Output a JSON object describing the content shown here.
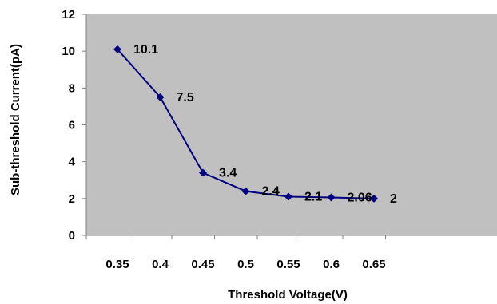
{
  "chart_data": {
    "type": "line",
    "x": [
      0.35,
      0.4,
      0.45,
      0.5,
      0.55,
      0.6,
      0.65
    ],
    "x_tick_labels": [
      "0.35",
      "0.4",
      "0.45",
      "0.5",
      "0.55",
      "0.6",
      "0.65"
    ],
    "series": [
      {
        "values": [
          10.1,
          7.5,
          3.4,
          2.4,
          2.1,
          2.06,
          2.0
        ],
        "data_labels": [
          "10.1",
          "7.5",
          "3.4",
          "2.4",
          "2.1",
          "2.06",
          "2"
        ],
        "color": "#000080",
        "marker": "diamond"
      }
    ],
    "xlabel": "Threshold Voltage(V)",
    "ylabel": "Sub-threshold Current(pA)",
    "ylim": [
      0,
      12
    ],
    "y_ticks": [
      0,
      2,
      4,
      6,
      8,
      10,
      12
    ],
    "y_tick_labels": [
      "0",
      "2",
      "4",
      "6",
      "8",
      "10",
      "12"
    ],
    "grid": false,
    "legend": "none",
    "plot_background": "#c0c0c0"
  }
}
